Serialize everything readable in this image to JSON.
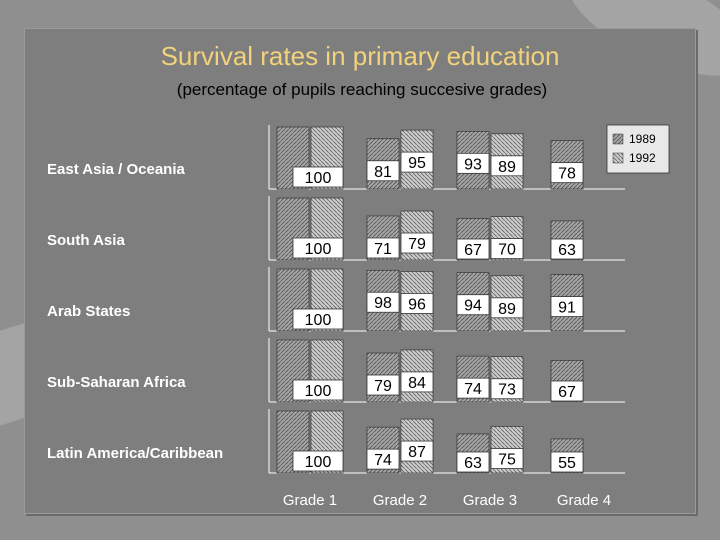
{
  "title": "Survival rates in primary education",
  "subtitle": "(percentage of pupils reaching succesive grades)",
  "colors": {
    "background": "#8f8f8f",
    "panel": "#7e7e7e",
    "title": "#f2d27a",
    "subtitle": "#000000",
    "label": "#ffffff",
    "bar_1989": "#9a9a9a",
    "bar_1992": "#c4c4c4"
  },
  "legend": {
    "items": [
      "1989",
      "1992"
    ],
    "position": "top-right"
  },
  "chart_data": {
    "type": "bar",
    "title": "Survival rates in primary education",
    "subtitle": "(percentage of pupils reaching succesive grades)",
    "categories": [
      "Grade 1",
      "Grade 2",
      "Grade 3",
      "Grade 4"
    ],
    "series_names": [
      "1989",
      "1992"
    ],
    "ylim": [
      0,
      100
    ],
    "panels": [
      {
        "region": "East Asia / Oceania",
        "values_1989": [
          100,
          81,
          93,
          78
        ],
        "values_1992": [
          100,
          95,
          89,
          null
        ]
      },
      {
        "region": "South Asia",
        "values_1989": [
          100,
          71,
          67,
          63
        ],
        "values_1992": [
          100,
          79,
          70,
          null
        ]
      },
      {
        "region": "Arab States",
        "values_1989": [
          100,
          98,
          94,
          91
        ],
        "values_1992": [
          100,
          96,
          89,
          null
        ]
      },
      {
        "region": "Sub-Saharan Africa",
        "values_1989": [
          100,
          79,
          74,
          67
        ],
        "values_1992": [
          100,
          84,
          73,
          null
        ]
      },
      {
        "region": "Latin America/Caribbean",
        "values_1989": [
          100,
          74,
          63,
          55
        ],
        "values_1992": [
          100,
          87,
          75,
          null
        ]
      }
    ],
    "grade1_labels": [
      "100",
      "100",
      "100",
      "100",
      "100"
    ]
  }
}
